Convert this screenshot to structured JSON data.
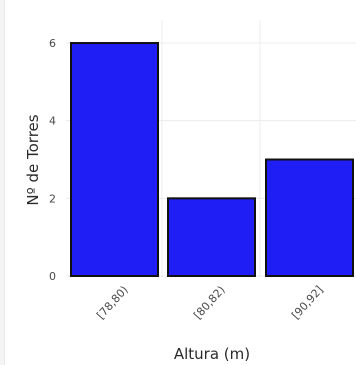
{
  "chart_data": {
    "type": "bar",
    "categories": [
      "[78,80)",
      "[80,82)",
      "[90,92]"
    ],
    "values": [
      6,
      2,
      3
    ],
    "xlabel": "Altura (m)",
    "ylabel": "Nº de Torres",
    "ylim": [
      0,
      6.6
    ],
    "yticks": [
      "0",
      "2",
      "4",
      "6"
    ],
    "grid": true,
    "bar_color": "#1f1ff5",
    "bar_edge_color": "#111111"
  }
}
